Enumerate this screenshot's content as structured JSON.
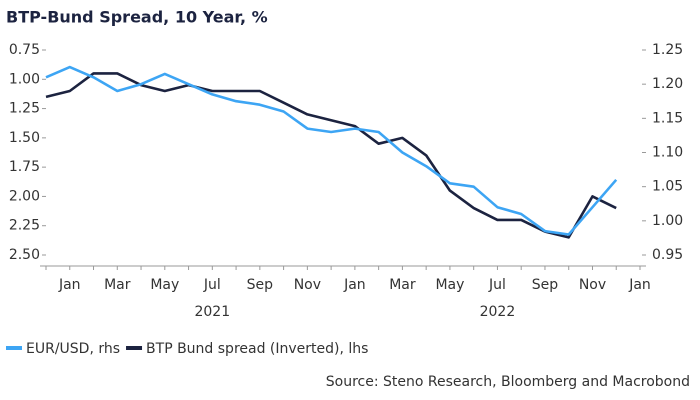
{
  "chart_data": {
    "type": "line",
    "title": "BTP-Bund Spread, 10 Year, %",
    "source": "Source: Steno Research, Bloomberg and Macrobond",
    "x": [
      "2020-12",
      "2021-01",
      "2021-02",
      "2021-03",
      "2021-04",
      "2021-05",
      "2021-06",
      "2021-07",
      "2021-08",
      "2021-09",
      "2021-10",
      "2021-11",
      "2021-12",
      "2022-01",
      "2022-02",
      "2022-03",
      "2022-04",
      "2022-05",
      "2022-06",
      "2022-07",
      "2022-08",
      "2022-09",
      "2022-10",
      "2022-11",
      "2022-12"
    ],
    "series": [
      {
        "name": "EUR/USD, rhs",
        "color": "#3da5f4",
        "axis": "y2",
        "values": [
          1.21,
          1.225,
          1.21,
          1.19,
          1.2,
          1.215,
          1.2,
          1.185,
          1.175,
          1.17,
          1.16,
          1.135,
          1.13,
          1.135,
          1.13,
          1.1,
          1.08,
          1.055,
          1.05,
          1.02,
          1.01,
          0.985,
          0.98,
          1.02,
          1.06
        ]
      },
      {
        "name": "BTP Bund spread (Inverted), lhs",
        "color": "#1c2340",
        "values": [
          1.15,
          1.1,
          0.95,
          0.95,
          1.05,
          1.1,
          1.05,
          1.1,
          1.1,
          1.1,
          1.2,
          1.3,
          1.35,
          1.4,
          1.55,
          1.5,
          1.65,
          1.95,
          2.1,
          2.2,
          2.2,
          2.3,
          2.35,
          2.0,
          2.1
        ]
      }
    ],
    "xlim": [
      "2020-12",
      "2023-01"
    ],
    "xticks": [
      {
        "value": "2021-01",
        "label": "Jan"
      },
      {
        "value": "2021-03",
        "label": "Mar"
      },
      {
        "value": "2021-05",
        "label": "May"
      },
      {
        "value": "2021-07",
        "label": "Jul"
      },
      {
        "value": "2021-09",
        "label": "Sep"
      },
      {
        "value": "2021-11",
        "label": "Nov"
      },
      {
        "value": "2022-01",
        "label": "Jan"
      },
      {
        "value": "2022-03",
        "label": "Mar"
      },
      {
        "value": "2022-05",
        "label": "May"
      },
      {
        "value": "2022-07",
        "label": "Jul"
      },
      {
        "value": "2022-09",
        "label": "Sep"
      },
      {
        "value": "2022-11",
        "label": "Nov"
      },
      {
        "value": "2023-01",
        "label": "Jan"
      }
    ],
    "xgroups": [
      {
        "value": "2021-07",
        "label": "2021"
      },
      {
        "value": "2022-07",
        "label": "2022"
      }
    ],
    "ylim": [
      0.75,
      2.5
    ],
    "yinverted": true,
    "yticks": [
      0.75,
      {
        "value": 1,
        "label": "1.00"
      },
      1.25,
      {
        "value": 1.5,
        "label": "1.50"
      },
      1.75,
      {
        "value": 2,
        "label": "2.00"
      },
      2.25,
      {
        "value": 2.5,
        "label": "2.50"
      }
    ],
    "y2lim": [
      0.95,
      1.25
    ],
    "y2ticks": [
      0.95,
      {
        "value": 1,
        "label": "1.00"
      },
      1.05,
      {
        "value": 1.1,
        "label": "1.10"
      },
      1.15,
      {
        "value": 1.2,
        "label": "1.20"
      },
      1.25
    ]
  }
}
